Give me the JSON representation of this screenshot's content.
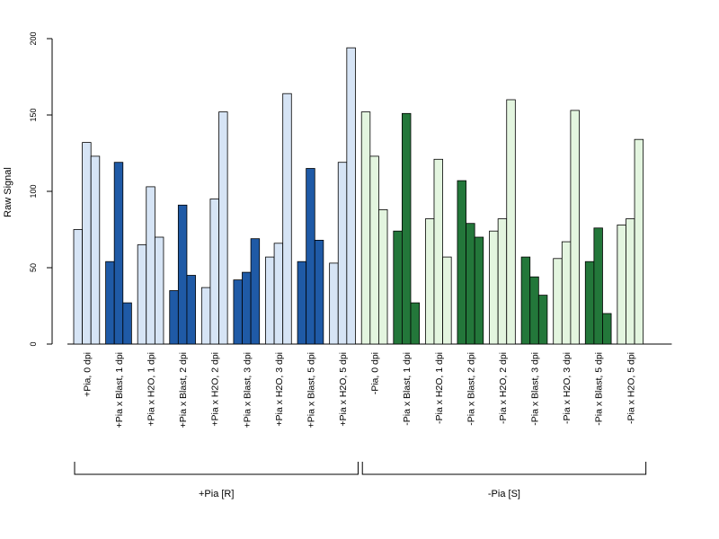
{
  "chart_data": {
    "type": "bar",
    "title": "",
    "xlabel": "",
    "ylabel": "Raw Signal",
    "ylim": [
      0,
      200
    ],
    "yticks": [
      0,
      50,
      100,
      150,
      200
    ],
    "grid": false,
    "legend": "none",
    "categories": [
      "+Pia, 0 dpi",
      "+Pia x Blast, 1 dpi",
      "+Pia x H2O, 1 dpi",
      "+Pia x Blast, 2 dpi",
      "+Pia x H2O, 2 dpi",
      "+Pia x Blast, 3 dpi",
      "+Pia x H2O, 3 dpi",
      "+Pia x Blast, 5 dpi",
      "+Pia x H2O, 5 dpi",
      "-Pia, 0 dpi",
      "-Pia x Blast, 1 dpi",
      "-Pia x H2O, 1 dpi",
      "-Pia x Blast, 2 dpi",
      "-Pia x H2O, 2 dpi",
      "-Pia x Blast, 3 dpi",
      "-Pia x H2O, 3 dpi",
      "-Pia x Blast, 5 dpi",
      "-Pia x H2O, 5 dpi"
    ],
    "groups": [
      {
        "label": "+Pia [R]",
        "first": 0,
        "last": 8
      },
      {
        "label": "-Pia [S]",
        "first": 9,
        "last": 17
      }
    ],
    "bar_colors": {
      "plus_light": "#d6e4f5",
      "plus_dark": "#1f5aa6",
      "minus_light": "#e3f5df",
      "minus_dark": "#23773a",
      "outline": "#000000"
    },
    "series": [
      {
        "values": [
          75,
          54,
          65,
          35,
          37,
          42,
          57,
          54,
          53,
          152,
          74,
          82,
          107,
          74,
          57,
          56,
          54,
          78
        ]
      },
      {
        "values": [
          132,
          119,
          103,
          91,
          95,
          47,
          66,
          115,
          119,
          123,
          151,
          121,
          79,
          82,
          44,
          67,
          76,
          82
        ]
      },
      {
        "values": [
          123,
          27,
          70,
          45,
          152,
          69,
          164,
          68,
          194,
          88,
          27,
          57,
          70,
          160,
          32,
          153,
          20,
          134
        ]
      }
    ]
  }
}
